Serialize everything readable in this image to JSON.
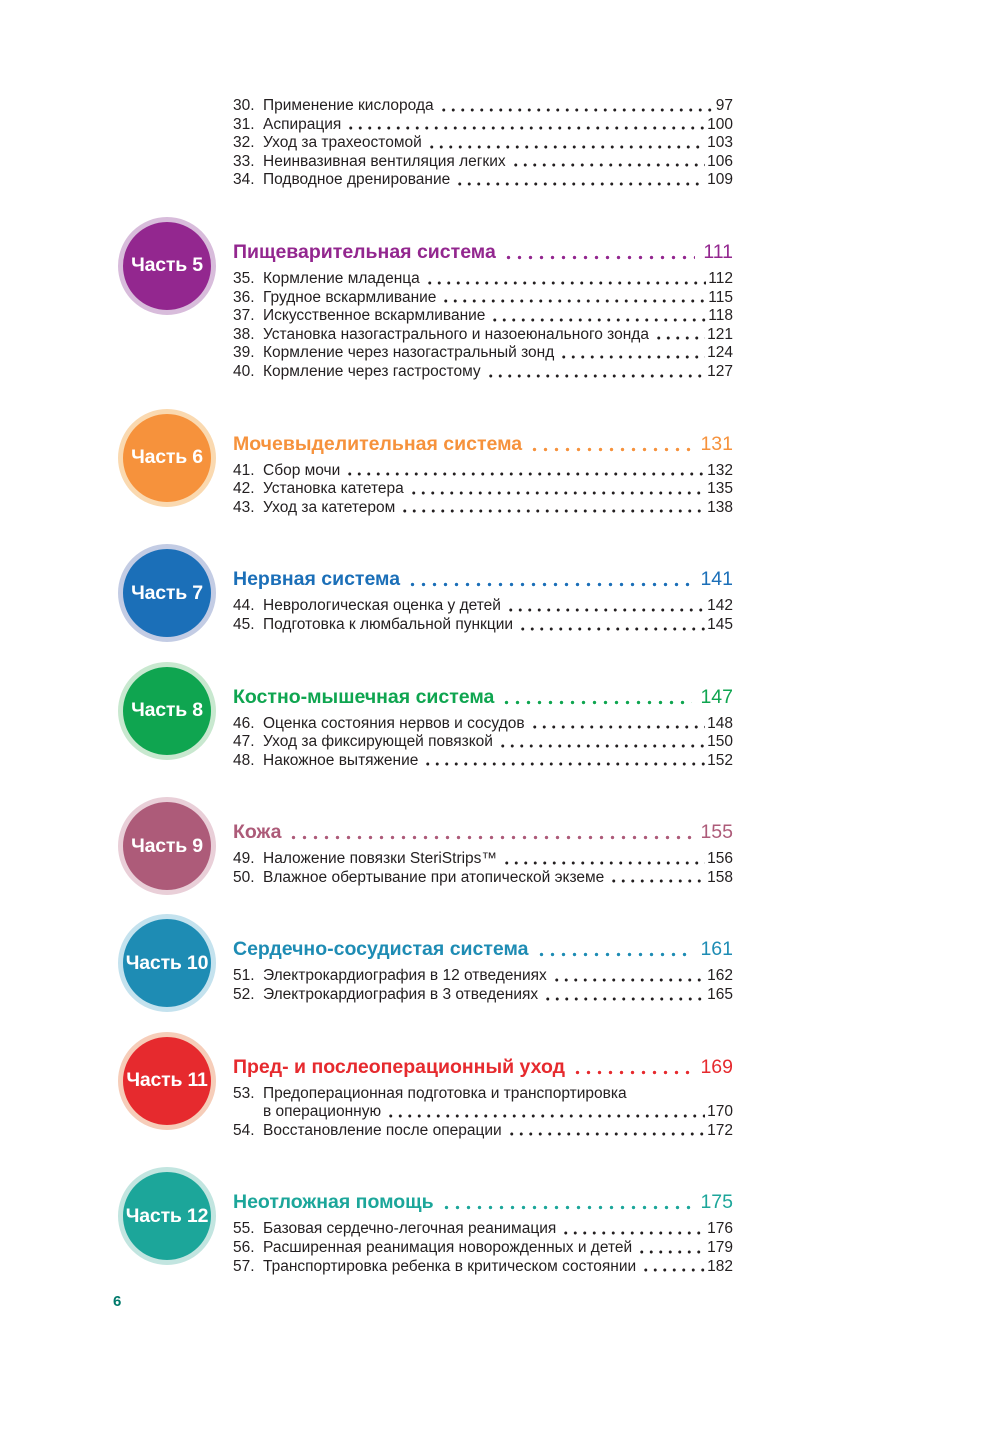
{
  "page": {
    "number": "6",
    "number_color": "#00796B"
  },
  "intro_items": [
    {
      "num": "30.",
      "title": "Применение кислорода",
      "page": "97"
    },
    {
      "num": "31.",
      "title": "Аспирация",
      "page": "100"
    },
    {
      "num": "32.",
      "title": "Уход за трахеостомой",
      "page": "103"
    },
    {
      "num": "33.",
      "title": "Неинвазивная вентиляция легких",
      "page": "106"
    },
    {
      "num": "34.",
      "title": "Подводное дренирование",
      "page": "109"
    }
  ],
  "sections": [
    {
      "badge": "Часть 5",
      "title": "Пищеварительная система",
      "page": "111",
      "color": "#93278F",
      "ring": "#D8BCDB",
      "items": [
        {
          "num": "35.",
          "title": "Кормление младенца",
          "page": "112"
        },
        {
          "num": "36.",
          "title": "Грудное вскармливание",
          "page": "115"
        },
        {
          "num": "37.",
          "title": "Искусственное вскармливание",
          "page": "118"
        },
        {
          "num": "38.",
          "title": "Установка назогастрального и назоеюнального зонда",
          "page": "121"
        },
        {
          "num": "39.",
          "title": "Кормление через назогастральный зонд",
          "page": "124"
        },
        {
          "num": "40.",
          "title": "Кормление через гастростому",
          "page": "127"
        }
      ]
    },
    {
      "badge": "Часть 6",
      "title": "Мочевыделительная система",
      "page": "131",
      "color": "#F6923C",
      "ring": "#FAD9B0",
      "items": [
        {
          "num": "41.",
          "title": "Сбор мочи",
          "page": "132"
        },
        {
          "num": "42.",
          "title": "Установка катетера",
          "page": "135"
        },
        {
          "num": "43.",
          "title": "Уход за катетером",
          "page": "138"
        }
      ]
    },
    {
      "badge": "Часть 7",
      "title": "Нервная система",
      "page": "141",
      "color": "#1B6FB8",
      "ring": "#C3CCE4",
      "items": [
        {
          "num": "44.",
          "title": "Неврологическая оценка у детей",
          "page": "142"
        },
        {
          "num": "45.",
          "title": "Подготовка к люмбальной пункции",
          "page": "145"
        }
      ]
    },
    {
      "badge": "Часть 8",
      "title": "Костно-мышечная система",
      "page": "147",
      "color": "#0FA550",
      "ring": "#C8E8CF",
      "items": [
        {
          "num": "46.",
          "title": "Оценка состояния нервов и сосудов",
          "page": "148"
        },
        {
          "num": "47.",
          "title": "Уход за фиксирующей повязкой",
          "page": "150"
        },
        {
          "num": "48.",
          "title": "Накожное вытяжение",
          "page": "152"
        }
      ]
    },
    {
      "badge": "Часть 9",
      "title": "Кожа",
      "page": "155",
      "color": "#AD5B79",
      "ring": "#E9CFD8",
      "items": [
        {
          "num": "49.",
          "title": "Наложение повязки SteriStrips™",
          "page": "156"
        },
        {
          "num": "50.",
          "title": "Влажное обертывание при атопической экземе",
          "page": "158"
        }
      ]
    },
    {
      "badge": "Часть 10",
      "title": "Сердечно-сосудистая система",
      "page": "161",
      "color": "#1E8CB4",
      "ring": "#C4E2EE",
      "items": [
        {
          "num": "51.",
          "title": "Электрокардиография в 12 отведениях",
          "page": "162"
        },
        {
          "num": "52.",
          "title": "Электрокардиография в 3 отведениях",
          "page": "165"
        }
      ]
    },
    {
      "badge": "Часть 11",
      "title": "Пред- и послеоперационный уход",
      "page": "169",
      "color": "#E62A2E",
      "ring": "#F6CDB9",
      "items": [
        {
          "num": "53.",
          "title": "Предоперационная подготовка и транспортировка",
          "title2": "в операционную",
          "page": "170"
        },
        {
          "num": "54.",
          "title": "Восстановление после операции",
          "page": "172"
        }
      ]
    },
    {
      "badge": "Часть 12",
      "title": "Неотложная помощь",
      "page": "175",
      "color": "#1CA69A",
      "ring": "#C2E5E0",
      "items": [
        {
          "num": "55.",
          "title": "Базовая сердечно-легочная реанимация",
          "page": "176"
        },
        {
          "num": "56.",
          "title": "Расширенная реанимация новорожденных и детей",
          "page": "179"
        },
        {
          "num": "57.",
          "title": "Транспортировка ребенка в критическом состоянии",
          "page": "182"
        }
      ]
    }
  ]
}
